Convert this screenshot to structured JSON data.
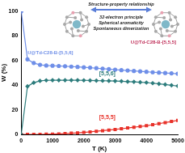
{
  "chart_data": {
    "type": "line",
    "x_label": "T (K)",
    "y_label": "W (%)",
    "x": [
      0,
      200,
      400,
      600,
      800,
      1000,
      1200,
      1400,
      1600,
      1800,
      2000,
      2200,
      2400,
      2600,
      2800,
      3000,
      3200,
      3400,
      3600,
      3800,
      4000,
      4200,
      4400,
      4600,
      4800,
      5000
    ],
    "series": [
      {
        "name": "U@Td-C28-B-[5,5,6]",
        "color": "#6f8fe8",
        "marker": "circle",
        "values": [
          100,
          61,
          58,
          56.5,
          56,
          55.8,
          55.6,
          55.4,
          55.1,
          54.8,
          54.5,
          54.2,
          53.8,
          53.4,
          53,
          52.6,
          52.2,
          51.9,
          51.5,
          51.2,
          50.9,
          50.5,
          50.2,
          49.9,
          49.6,
          49.3
        ]
      },
      {
        "name": "[5,5,6]",
        "color": "#2e7d7d",
        "marker": "diamond",
        "values": [
          0,
          39,
          42,
          43.5,
          43.9,
          44,
          44,
          44,
          44,
          44,
          43.9,
          43.8,
          43.7,
          43.6,
          43.5,
          43.4,
          43.2,
          42.9,
          42.7,
          42.4,
          42.1,
          41.6,
          41.1,
          40.5,
          39.9,
          39.3
        ]
      },
      {
        "name": "[5,5,5]",
        "color": "#e8322a",
        "marker": "square",
        "values": [
          0,
          0,
          0,
          0,
          0.1,
          0.2,
          0.4,
          0.6,
          0.9,
          1.2,
          1.6,
          2,
          2.5,
          3,
          3.5,
          4,
          4.6,
          5.2,
          5.8,
          6.4,
          7,
          7.9,
          8.7,
          9.6,
          10.5,
          11.4
        ]
      }
    ],
    "xlim": [
      0,
      5000
    ],
    "xticks": [
      0,
      1000,
      2000,
      3000,
      4000,
      5000
    ],
    "ylim": [
      0,
      100
    ],
    "yticks": [
      0,
      20,
      40,
      60,
      80,
      100
    ],
    "grid": false,
    "annotations": [
      "Structure-property relationship",
      "32-electron principle",
      "Spherical aromaticity",
      "Spontaneous dimerization",
      "U@Td-C28-B-[5,5,5]"
    ]
  }
}
